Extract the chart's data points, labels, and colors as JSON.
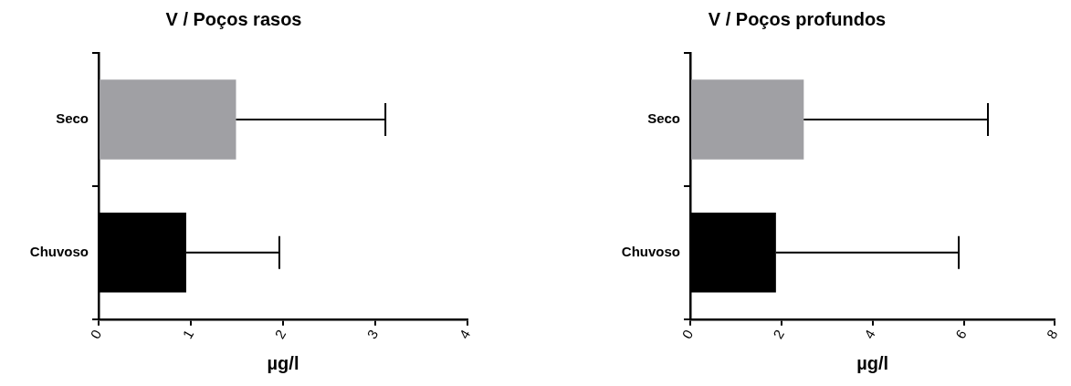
{
  "chart_data": [
    {
      "type": "bar",
      "orientation": "horizontal",
      "title": "V / Poços rasos",
      "xlabel": "µg/l",
      "categories": [
        "Seco",
        "Chuvoso"
      ],
      "values": [
        1.49,
        0.95
      ],
      "colors": [
        "#a0a0a4",
        "#000000"
      ],
      "errors": [
        [
          1.49,
          3.11
        ],
        [
          0.95,
          1.96
        ]
      ],
      "xlim": [
        0,
        4
      ],
      "xticks": [
        0,
        1,
        2,
        3,
        4
      ]
    },
    {
      "type": "bar",
      "orientation": "horizontal",
      "title": "V / Poços profundos",
      "xlabel": "µg/l",
      "categories": [
        "Seco",
        "Chuvoso"
      ],
      "values": [
        2.49,
        1.88
      ],
      "colors": [
        "#a0a0a4",
        "#000000"
      ],
      "errors": [
        [
          2.49,
          6.53
        ],
        [
          1.88,
          5.89
        ]
      ],
      "xlim": [
        0,
        8
      ],
      "xticks": [
        0,
        2,
        4,
        6,
        8
      ]
    }
  ]
}
